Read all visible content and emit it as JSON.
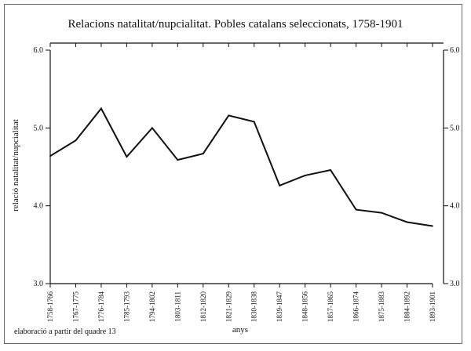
{
  "chart_data": {
    "type": "line",
    "title": "Relacions natalitat/nupcialitat. Pobles catalans seleccionats, 1758-1901",
    "xlabel": "anys",
    "ylabel": "relació natalitat/nupcialitat",
    "ylim": [
      3.0,
      6.0
    ],
    "y_ticks": [
      "3.0",
      "4.0",
      "5.0",
      "6.0"
    ],
    "right_axis": true,
    "grid": false,
    "categories": [
      "1758-1766",
      "1767-1775",
      "1776-1784",
      "1785-1793",
      "1794-1802",
      "1803-1811",
      "1812-1820",
      "1821-1829",
      "1830-1838",
      "1839-1847",
      "1848-1856",
      "1857-1865",
      "1866-1874",
      "1875-1883",
      "1884-1892",
      "1893-1901"
    ],
    "series": [
      {
        "values": [
          4.64,
          4.84,
          5.25,
          4.63,
          5.0,
          4.59,
          4.67,
          5.16,
          5.08,
          4.26,
          4.39,
          4.46,
          3.95,
          3.91,
          3.79,
          3.74
        ]
      }
    ],
    "color": "#111111"
  },
  "source": "elaboració a partir del quadre 13"
}
